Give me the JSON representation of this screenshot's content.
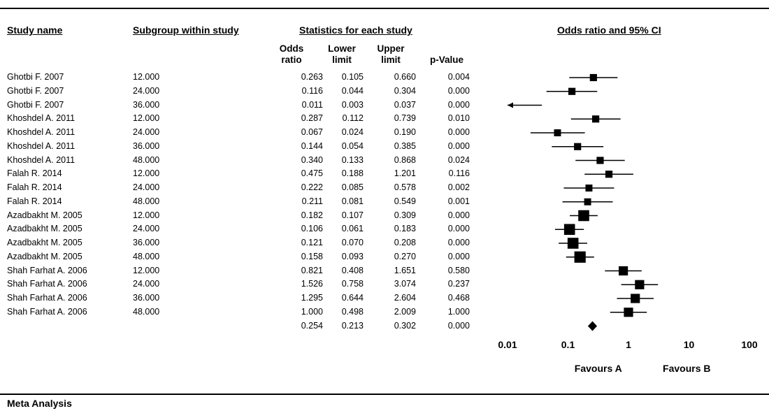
{
  "headers": {
    "study": "Study name",
    "subgroup": "Subgroup within study",
    "stats": "Statistics for each study",
    "plot": "Odds ratio and 95% CI"
  },
  "stat_cols": [
    [
      "Odds",
      "ratio"
    ],
    [
      "Lower",
      "limit"
    ],
    [
      "Upper",
      "limit"
    ],
    [
      "p-Value"
    ]
  ],
  "footer": "Meta Analysis",
  "chart_data": {
    "type": "forest",
    "x_scale": "log",
    "xlim": [
      0.01,
      100
    ],
    "x_ticks": [
      "0.01",
      "0.1",
      "1",
      "10",
      "100"
    ],
    "favours_left": "Favours A",
    "favours_right": "Favours B",
    "rows": [
      {
        "study": "Ghotbi F. 2007",
        "subgroup": "12.000",
        "or": "0.263",
        "lower": "0.105",
        "upper": "0.660",
        "p": "0.004",
        "w": 0.35
      },
      {
        "study": "Ghotbi F. 2007",
        "subgroup": "24.000",
        "or": "0.116",
        "lower": "0.044",
        "upper": "0.304",
        "p": "0.000",
        "w": 0.35
      },
      {
        "study": "Ghotbi F. 2007",
        "subgroup": "36.000",
        "or": "0.011",
        "lower": "0.003",
        "upper": "0.037",
        "p": "0.000",
        "w": 0.35
      },
      {
        "study": "Khoshdel A. 2011",
        "subgroup": "12.000",
        "or": "0.287",
        "lower": "0.112",
        "upper": "0.739",
        "p": "0.010",
        "w": 0.35
      },
      {
        "study": "Khoshdel A. 2011",
        "subgroup": "24.000",
        "or": "0.067",
        "lower": "0.024",
        "upper": "0.190",
        "p": "0.000",
        "w": 0.33
      },
      {
        "study": "Khoshdel A. 2011",
        "subgroup": "36.000",
        "or": "0.144",
        "lower": "0.054",
        "upper": "0.385",
        "p": "0.000",
        "w": 0.35
      },
      {
        "study": "Khoshdel A. 2011",
        "subgroup": "48.000",
        "or": "0.340",
        "lower": "0.133",
        "upper": "0.868",
        "p": "0.024",
        "w": 0.35
      },
      {
        "study": "Falah R. 2014",
        "subgroup": "12.000",
        "or": "0.475",
        "lower": "0.188",
        "upper": "1.201",
        "p": "0.116",
        "w": 0.35
      },
      {
        "study": "Falah R. 2014",
        "subgroup": "24.000",
        "or": "0.222",
        "lower": "0.085",
        "upper": "0.578",
        "p": "0.002",
        "w": 0.33
      },
      {
        "study": "Falah R. 2014",
        "subgroup": "48.000",
        "or": "0.211",
        "lower": "0.081",
        "upper": "0.549",
        "p": "0.001",
        "w": 0.33
      },
      {
        "study": "Azadbakht M. 2005",
        "subgroup": "12.000",
        "or": "0.182",
        "lower": "0.107",
        "upper": "0.309",
        "p": "0.000",
        "w": 0.8
      },
      {
        "study": "Azadbakht M. 2005",
        "subgroup": "24.000",
        "or": "0.106",
        "lower": "0.061",
        "upper": "0.183",
        "p": "0.000",
        "w": 0.8
      },
      {
        "study": "Azadbakht M. 2005",
        "subgroup": "36.000",
        "or": "0.121",
        "lower": "0.070",
        "upper": "0.208",
        "p": "0.000",
        "w": 0.8
      },
      {
        "study": "Azadbakht M. 2005",
        "subgroup": "48.000",
        "or": "0.158",
        "lower": "0.093",
        "upper": "0.270",
        "p": "0.000",
        "w": 0.85
      },
      {
        "study": "Shah Farhat A. 2006",
        "subgroup": "12.000",
        "or": "0.821",
        "lower": "0.408",
        "upper": "1.651",
        "p": "0.580",
        "w": 0.6
      },
      {
        "study": "Shah Farhat A. 2006",
        "subgroup": "24.000",
        "or": "1.526",
        "lower": "0.758",
        "upper": "3.074",
        "p": "0.237",
        "w": 0.6
      },
      {
        "study": "Shah Farhat A. 2006",
        "subgroup": "36.000",
        "or": "1.295",
        "lower": "0.644",
        "upper": "2.604",
        "p": "0.468",
        "w": 0.6
      },
      {
        "study": "Shah Farhat A. 2006",
        "subgroup": "48.000",
        "or": "1.000",
        "lower": "0.498",
        "upper": "2.009",
        "p": "1.000",
        "w": 0.6
      }
    ],
    "summary": {
      "study": "",
      "subgroup": "",
      "or": "0.254",
      "lower": "0.213",
      "upper": "0.302",
      "p": "0.000"
    }
  }
}
